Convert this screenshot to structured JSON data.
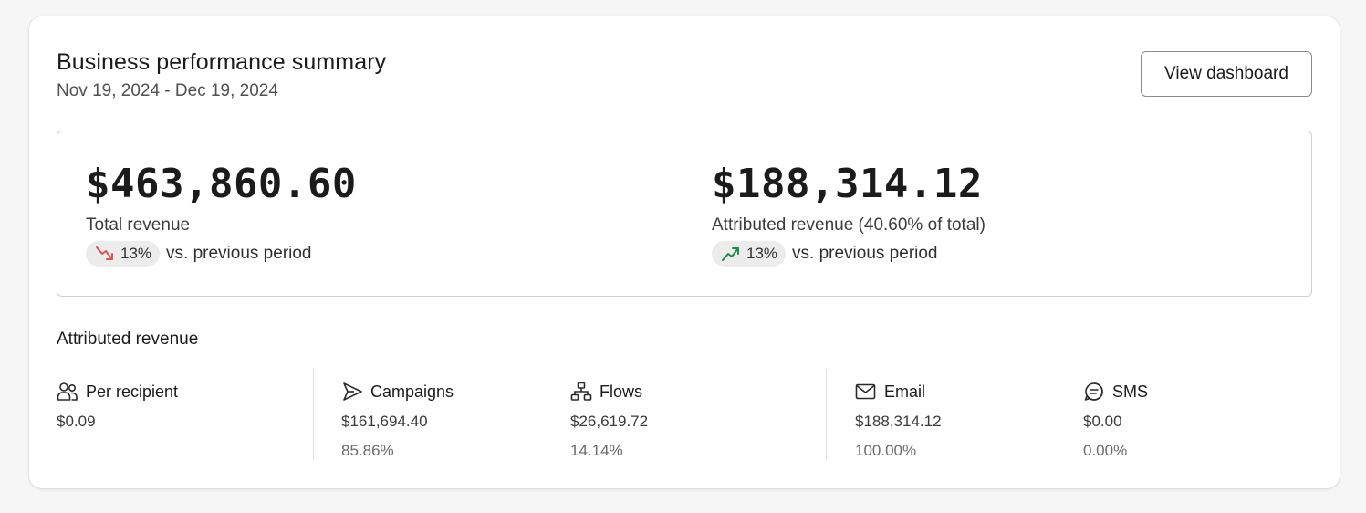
{
  "header": {
    "title": "Business performance summary",
    "date_range": "Nov 19, 2024 - Dec 19, 2024",
    "view_dashboard_label": "View dashboard"
  },
  "summary": {
    "total": {
      "value": "$463,860.60",
      "label": "Total revenue",
      "change": "13%",
      "direction": "down",
      "direction_color": "#d9534f",
      "vs_text": "vs. previous period"
    },
    "attributed": {
      "value": "$188,314.12",
      "label": "Attributed revenue (40.60% of total)",
      "change": "13%",
      "direction": "up",
      "direction_color": "#1e8a4c",
      "vs_text": "vs. previous period"
    }
  },
  "attributed_section": {
    "title": "Attributed revenue",
    "per_recipient": {
      "icon": "users-icon",
      "label": "Per recipient",
      "value": "$0.09"
    },
    "campaigns": {
      "icon": "send-icon",
      "label": "Campaigns",
      "value": "$161,694.40",
      "percent": "85.86%"
    },
    "flows": {
      "icon": "flow-icon",
      "label": "Flows",
      "value": "$26,619.72",
      "percent": "14.14%"
    },
    "email": {
      "icon": "mail-icon",
      "label": "Email",
      "value": "$188,314.12",
      "percent": "100.00%"
    },
    "sms": {
      "icon": "sms-icon",
      "label": "SMS",
      "value": "$0.00",
      "percent": "0.00%"
    }
  }
}
